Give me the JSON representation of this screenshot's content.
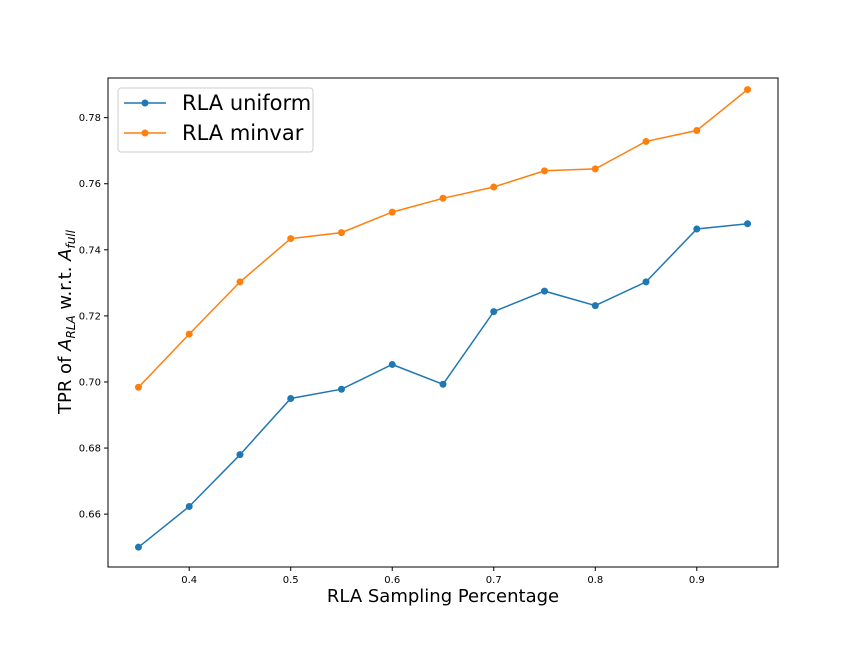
{
  "chart_data": {
    "type": "line",
    "title": "",
    "xlabel": "RLA Sampling Percentage",
    "ylabel": {
      "prefix": "TPR of ",
      "var1": "A",
      "sub1": "RLA",
      "middle": " w.r.t. ",
      "var2": "A",
      "sub2": "full"
    },
    "x": [
      0.35,
      0.4,
      0.45,
      0.5,
      0.55,
      0.6,
      0.65,
      0.7,
      0.75,
      0.8,
      0.85,
      0.9,
      0.95
    ],
    "xlim": [
      0.32,
      0.98
    ],
    "ylim": [
      0.644,
      0.792
    ],
    "xticks": [
      0.4,
      0.5,
      0.6,
      0.7,
      0.8,
      0.9
    ],
    "xtick_labels": [
      "0.4",
      "0.5",
      "0.6",
      "0.7",
      "0.8",
      "0.9"
    ],
    "yticks": [
      0.66,
      0.68,
      0.7,
      0.72,
      0.74,
      0.76,
      0.78
    ],
    "ytick_labels": [
      "0.66",
      "0.68",
      "0.70",
      "0.72",
      "0.74",
      "0.76",
      "0.78"
    ],
    "grid": false,
    "legend_position": "top-left",
    "series": [
      {
        "name": "RLA uniform",
        "color": "#1f77b4",
        "marker": "circle",
        "values": [
          0.65,
          0.6623,
          0.678,
          0.695,
          0.6978,
          0.7053,
          0.6993,
          0.7213,
          0.7275,
          0.7231,
          0.7303,
          0.7463,
          0.7479
        ]
      },
      {
        "name": "RLA minvar",
        "color": "#ff7f0e",
        "marker": "circle",
        "values": [
          0.6984,
          0.7145,
          0.7303,
          0.7434,
          0.7452,
          0.7514,
          0.7556,
          0.759,
          0.7639,
          0.7645,
          0.7728,
          0.7761,
          0.7885
        ]
      }
    ]
  }
}
